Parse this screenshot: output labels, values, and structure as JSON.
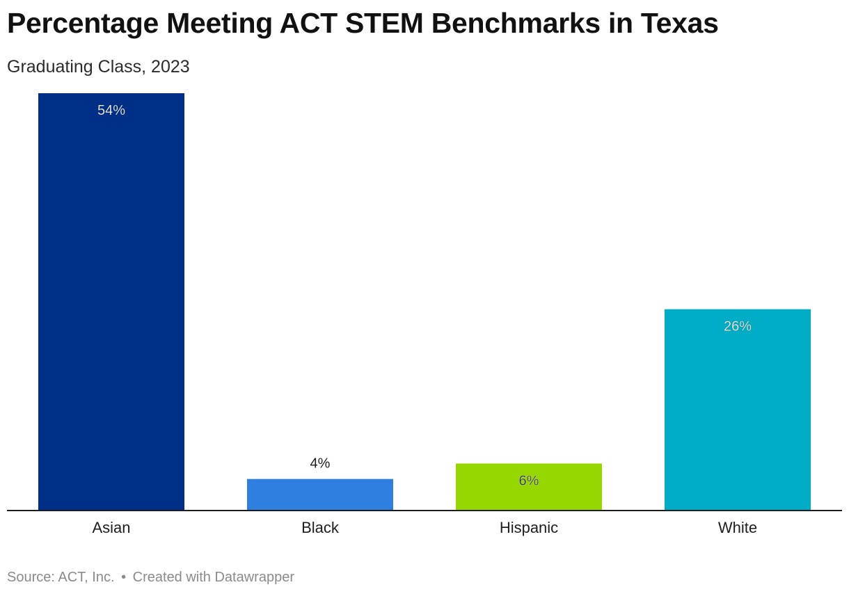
{
  "header": {
    "title": "Percentage Meeting ACT STEM Benchmarks in Texas",
    "subtitle": "Graduating Class, 2023"
  },
  "footer": {
    "source": "Source: ACT, Inc.",
    "separator": "•",
    "credit": "Created with Datawrapper"
  },
  "chart_data": {
    "type": "bar",
    "title": "Percentage Meeting ACT STEM Benchmarks in Texas",
    "subtitle": "Graduating Class, 2023",
    "xlabel": "",
    "ylabel": "",
    "categories": [
      "Asian",
      "Black",
      "Hispanic",
      "White"
    ],
    "values": [
      54,
      4,
      6,
      26
    ],
    "labels": [
      "54%",
      "4%",
      "6%",
      "26%"
    ],
    "colors": [
      "#002f87",
      "#2f7fe0",
      "#97d700",
      "#00adc6"
    ],
    "label_colors": [
      "#ffffff",
      "#1d1d1d",
      "#1d1d1d",
      "#ffffff"
    ],
    "ylim": [
      0,
      54
    ],
    "grid": false,
    "legend": "none"
  }
}
